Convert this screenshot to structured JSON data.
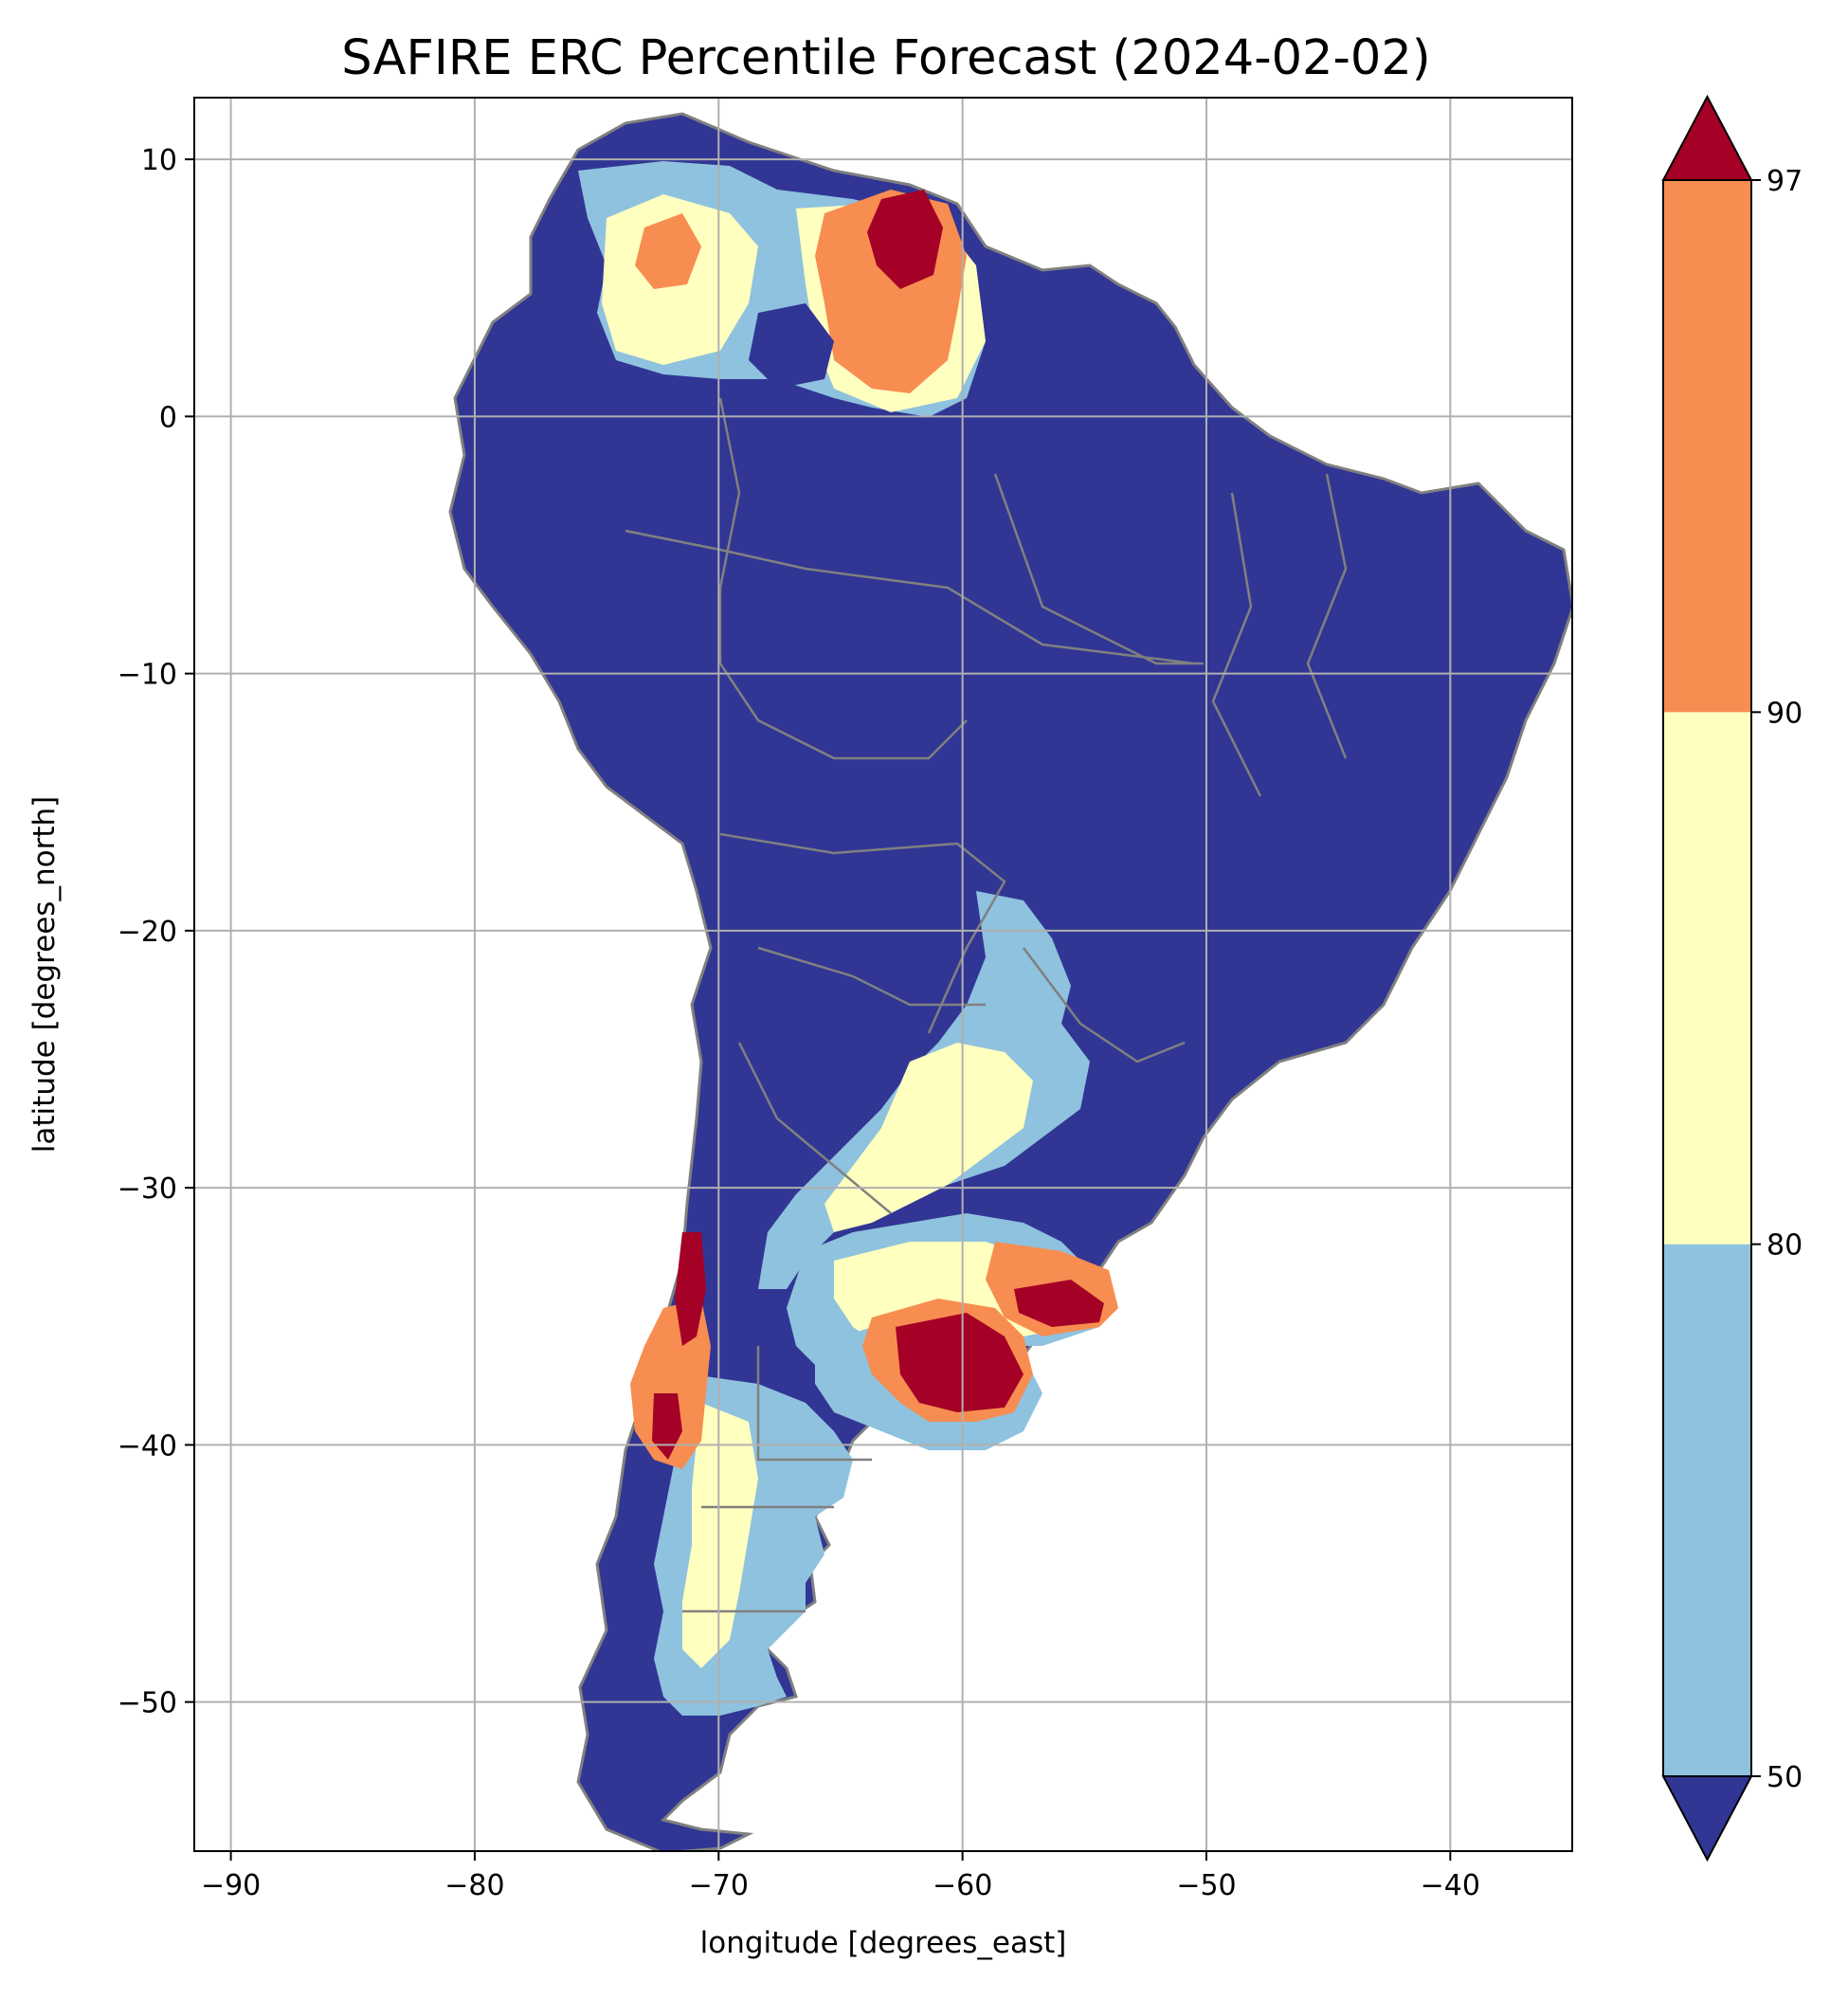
{
  "chart_data": {
    "type": "heatmap",
    "title": "SAFIRE ERC Percentile Forecast (2024-02-02)",
    "xlabel": "longitude [degrees_east]",
    "ylabel": "latitude [degrees_north]",
    "xlim": [
      -91.5,
      -35
    ],
    "ylim": [
      -55.8,
      12.4
    ],
    "xticks": [
      -90,
      -80,
      -70,
      -60,
      -50,
      -40
    ],
    "yticks": [
      10,
      0,
      -10,
      -20,
      -30,
      -40,
      -50
    ],
    "xtick_labels": [
      "−90",
      "−80",
      "−70",
      "−60",
      "−50",
      "−40"
    ],
    "ytick_labels": [
      "10",
      "0",
      "−10",
      "−20",
      "−30",
      "−40",
      "−50"
    ],
    "grid": true,
    "map_region": "South America",
    "colorbar": {
      "boundaries": [
        50,
        80,
        90,
        97
      ],
      "tick_labels": [
        "50",
        "80",
        "90",
        "97"
      ],
      "extend": "both",
      "colors": {
        "under": "#313695",
        "50-80": "#8fc2de",
        "80-90": "#ffffbf",
        "90-97": "#f88d51",
        "over": "#a50026"
      }
    },
    "regions": [
      {
        "class": "below 50",
        "area": "Amazon basin, central and eastern Brazil, Andes, southern Chile coast",
        "color": "#313695"
      },
      {
        "class": "90-97 and above 97",
        "area": "southern Venezuela / Guiana highlands",
        "color": "#f88d51"
      },
      {
        "class": "80-90",
        "area": "eastern Colombia llanos",
        "color": "#ffffbf"
      },
      {
        "class": "50-90",
        "area": "Paraguay, northern Argentina, Patagonia",
        "color": "#8fc2de"
      },
      {
        "class": "above 97",
        "area": "Buenos Aires province and Uruguay south coast",
        "color": "#a50026"
      },
      {
        "class": "90-97 and above 97",
        "area": "central Chile",
        "color": "#f88d51"
      }
    ]
  },
  "colors": {
    "gridline": "#b0b0b0",
    "border": "#808080",
    "background": "#ffffff"
  }
}
